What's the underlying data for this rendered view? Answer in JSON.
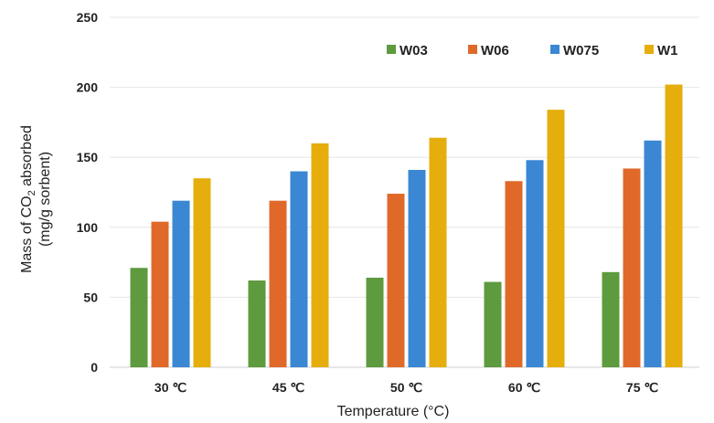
{
  "chart_data": {
    "type": "bar",
    "xlabel": "Temperature (°C)",
    "ylabel_line1_prefix": "Mass of CO",
    "ylabel_line1_sub": "2",
    "ylabel_line1_suffix": " absorbed",
    "ylabel_line2": "(mg/g sorbent)",
    "categories": [
      "30 ℃",
      "45 ℃",
      "50 ℃",
      "60 ℃",
      "75 ℃"
    ],
    "ylim": [
      0,
      250
    ],
    "yticks": [
      "0",
      "50",
      "100",
      "150",
      "200",
      "250"
    ],
    "grid": true,
    "legend_position": "top-right",
    "series": [
      {
        "name": "W03",
        "color": "#5e9a3e",
        "values": [
          71,
          62,
          64,
          61,
          68
        ]
      },
      {
        "name": "W06",
        "color": "#e0692a",
        "values": [
          104,
          119,
          124,
          133,
          142
        ]
      },
      {
        "name": "W075",
        "color": "#3b87d3",
        "values": [
          119,
          140,
          141,
          148,
          162
        ]
      },
      {
        "name": "W1",
        "color": "#e6ae0c",
        "values": [
          135,
          160,
          164,
          184,
          202
        ]
      }
    ]
  }
}
